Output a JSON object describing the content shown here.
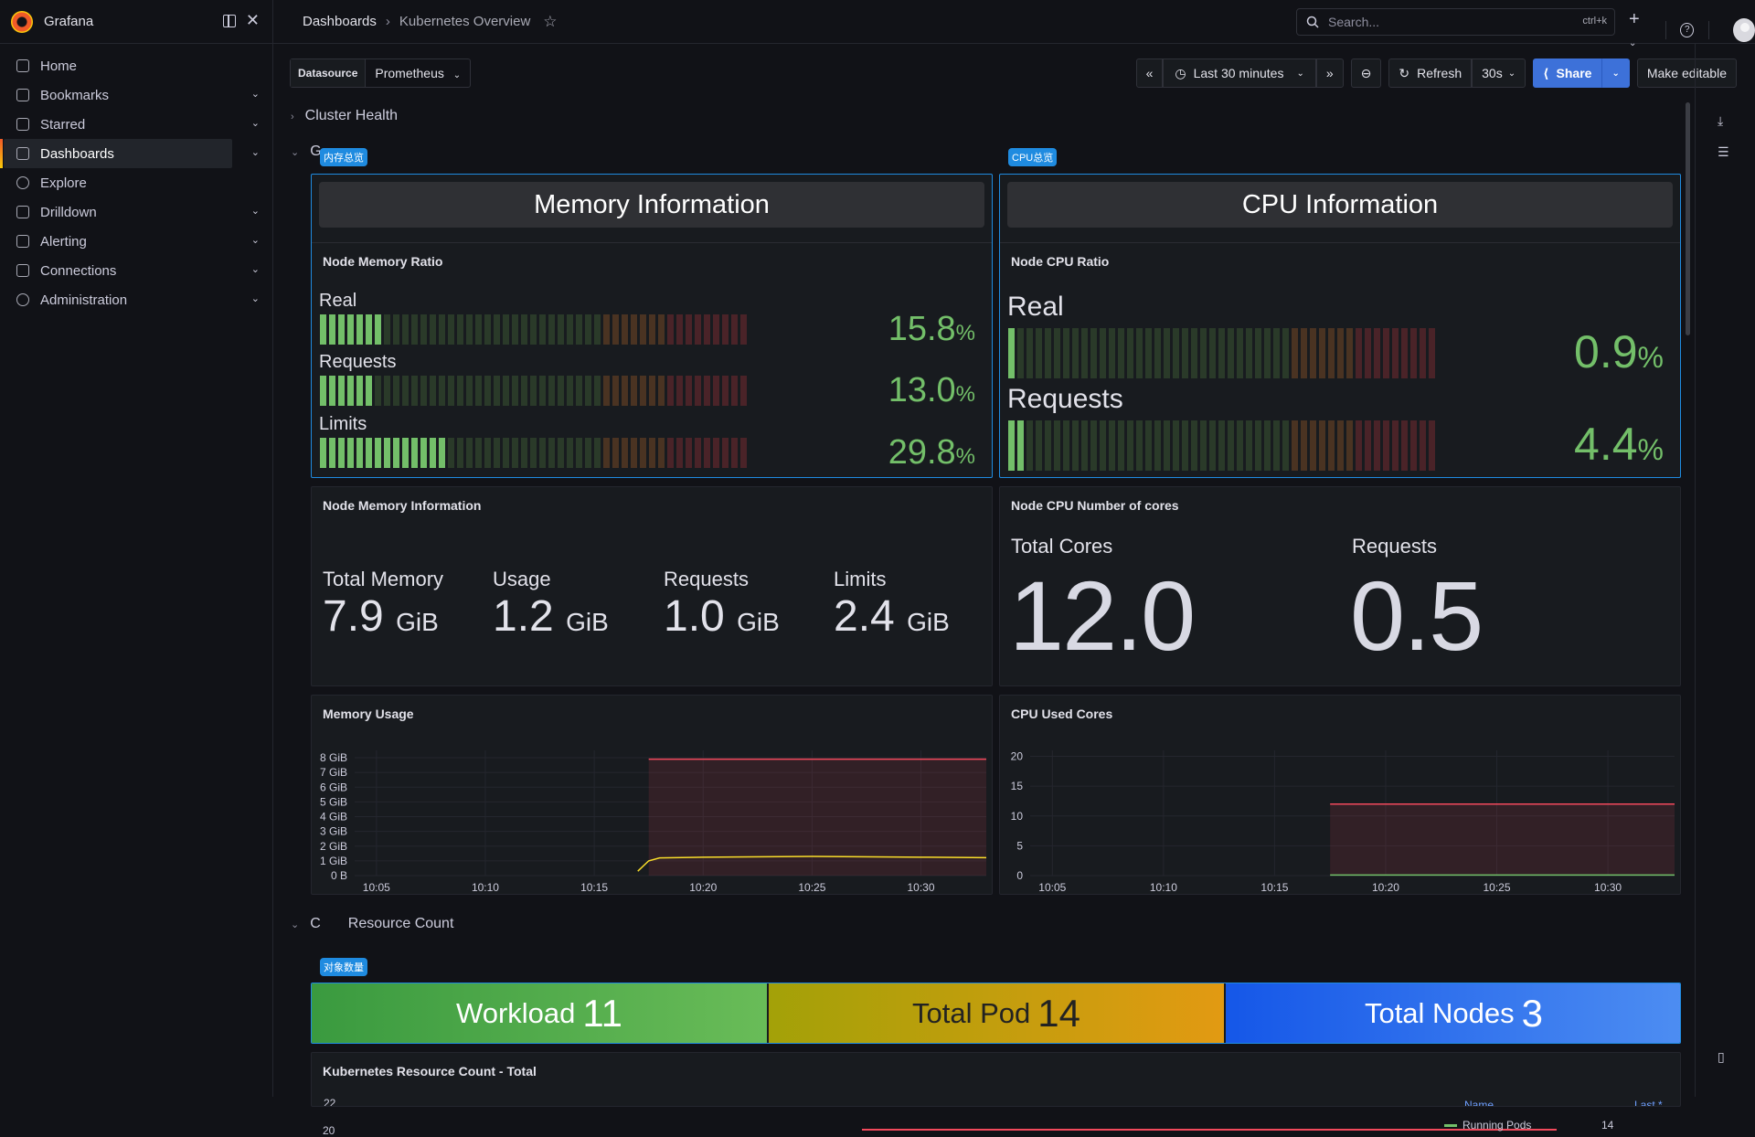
{
  "app": {
    "title": "Grafana"
  },
  "breadcrumb": {
    "dashboards": "Dashboards",
    "separator": "›",
    "current": "Kubernetes Overview"
  },
  "search": {
    "placeholder": "Search...",
    "shortcut": "ctrl+k"
  },
  "sidebar": {
    "items": [
      {
        "label": "Home",
        "icon": "home-icon",
        "expandable": false
      },
      {
        "label": "Bookmarks",
        "icon": "bookmark-icon",
        "expandable": true
      },
      {
        "label": "Starred",
        "icon": "star-icon",
        "expandable": true
      },
      {
        "label": "Dashboards",
        "icon": "dashboards-icon",
        "expandable": true,
        "active": true
      },
      {
        "label": "Explore",
        "icon": "compass-icon",
        "expandable": false
      },
      {
        "label": "Drilldown",
        "icon": "drilldown-icon",
        "expandable": true
      },
      {
        "label": "Alerting",
        "icon": "bell-icon",
        "expandable": true
      },
      {
        "label": "Connections",
        "icon": "plug-icon",
        "expandable": true
      },
      {
        "label": "Administration",
        "icon": "gear-icon",
        "expandable": true
      }
    ]
  },
  "toolbar": {
    "datasource_label": "Datasource",
    "datasource_value": "Prometheus",
    "time_range": "Last 30 minutes",
    "refresh_label": "Refresh",
    "refresh_interval": "30s",
    "share_label": "Share",
    "make_editable_label": "Make editable"
  },
  "rows": {
    "cluster_health": "Cluster Health",
    "general_partial": "G",
    "resource_count_prefix": "C",
    "resource_count_suffix": "Resource Count"
  },
  "badges": {
    "memory": "内存总览",
    "cpu": "CPU总览",
    "objects": "对象数量"
  },
  "memory_info": {
    "header": "Memory Information",
    "ratio_title": "Node Memory Ratio",
    "gauges": [
      {
        "label": "Real",
        "value": "15.8",
        "unit": "%",
        "fraction": 0.158
      },
      {
        "label": "Requests",
        "value": "13.0",
        "unit": "%",
        "fraction": 0.13
      },
      {
        "label": "Limits",
        "value": "29.8",
        "unit": "%",
        "fraction": 0.298
      }
    ],
    "info_title": "Node Memory Information",
    "stats": [
      {
        "label": "Total Memory",
        "value": "7.9",
        "unit": "GiB"
      },
      {
        "label": "Usage",
        "value": "1.2",
        "unit": "GiB"
      },
      {
        "label": "Requests",
        "value": "1.0",
        "unit": "GiB"
      },
      {
        "label": "Limits",
        "value": "2.4",
        "unit": "GiB"
      }
    ]
  },
  "cpu_info": {
    "header": "CPU Information",
    "ratio_title": "Node CPU Ratio",
    "gauges": [
      {
        "label": "Real",
        "value": "0.9",
        "unit": "%",
        "fraction": 0.009
      },
      {
        "label": "Requests",
        "value": "4.4",
        "unit": "%",
        "fraction": 0.044
      }
    ],
    "cores_title": "Node CPU Number of cores",
    "stats": [
      {
        "label": "Total Cores",
        "value": "12.0"
      },
      {
        "label": "Requests",
        "value": "0.5"
      }
    ]
  },
  "colors": {
    "green": "#73bf69",
    "orange": "#ff9830",
    "red": "#f2495c",
    "accent": "#1f8be0",
    "primary": "#3d71d9"
  },
  "chart_data": [
    {
      "type": "line",
      "title": "Memory Usage",
      "x": [
        "10:05",
        "10:10",
        "10:15",
        "10:20",
        "10:25",
        "10:30"
      ],
      "yticks": [
        "0 B",
        "1 GiB",
        "2 GiB",
        "3 GiB",
        "4 GiB",
        "5 GiB",
        "6 GiB",
        "7 GiB",
        "8 GiB"
      ],
      "ylim": [
        0,
        8.5
      ],
      "xlim": [
        "10:04",
        "10:33"
      ],
      "series": [
        {
          "color": "#f2495c",
          "points": [
            [
              "10:17:30",
              7.9
            ],
            [
              "10:33",
              7.9
            ]
          ]
        },
        {
          "color": "#fade2a",
          "points": [
            [
              "10:17",
              0.3
            ],
            [
              "10:17:30",
              1.0
            ],
            [
              "10:18",
              1.2
            ],
            [
              "10:20",
              1.25
            ],
            [
              "10:25",
              1.3
            ],
            [
              "10:30",
              1.25
            ],
            [
              "10:33",
              1.22
            ]
          ]
        }
      ]
    },
    {
      "type": "line",
      "title": "CPU Used Cores",
      "x": [
        "10:05",
        "10:10",
        "10:15",
        "10:20",
        "10:25",
        "10:30"
      ],
      "yticks": [
        "0",
        "5",
        "10",
        "15",
        "20"
      ],
      "ylim": [
        0,
        21
      ],
      "xlim": [
        "10:04",
        "10:33"
      ],
      "series": [
        {
          "color": "#f2495c",
          "points": [
            [
              "10:17:30",
              12
            ],
            [
              "10:33",
              12
            ]
          ]
        },
        {
          "color": "#73bf69",
          "points": [
            [
              "10:17:30",
              0.1
            ],
            [
              "10:33",
              0.1
            ]
          ]
        }
      ]
    },
    {
      "type": "line",
      "title": "Kubernetes Resource Count - Total",
      "yticks": [
        "20",
        "22"
      ],
      "legend": {
        "headers": [
          "Name",
          "Last *"
        ],
        "entries": [
          {
            "name": "Running Pods",
            "last": "14"
          }
        ]
      }
    }
  ],
  "resource_count": {
    "tiles": [
      {
        "label": "Workload",
        "value": "11"
      },
      {
        "label": "Total Pod",
        "value": "14"
      },
      {
        "label": "Total Nodes",
        "value": "3"
      }
    ]
  }
}
